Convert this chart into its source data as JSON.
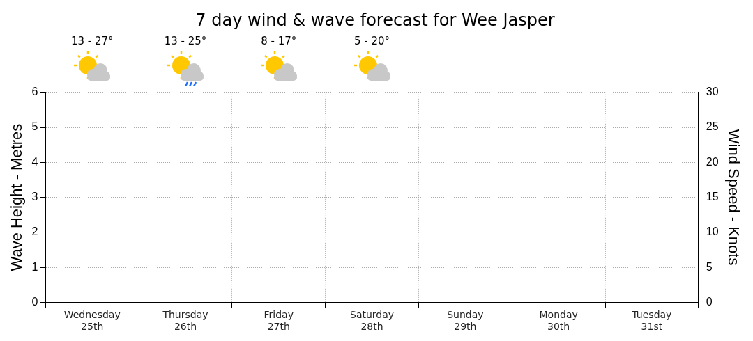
{
  "chart_data": {
    "type": "bar",
    "title": "7 day wind & wave forecast for Wee Jasper",
    "ylabel": "Wave Height - Metres",
    "y2label": "Wind Speed - Knots",
    "categories": [
      "Wednesday\n25th",
      "Thursday\n26th",
      "Friday\n27th",
      "Saturday\n28th",
      "Sunday\n29th",
      "Monday\n30th",
      "Tuesday\n31st"
    ],
    "ylim": [
      0,
      6
    ],
    "yticks": [
      0,
      1,
      2,
      3,
      4,
      5,
      6
    ],
    "y2lim": [
      0,
      30
    ],
    "y2ticks": [
      0,
      5,
      10,
      15,
      20,
      25,
      30
    ],
    "annotations": [
      "13 - 27°",
      "13 - 25°",
      "8 - 17°",
      "5 - 20°"
    ],
    "grid": true,
    "legend": false
  }
}
